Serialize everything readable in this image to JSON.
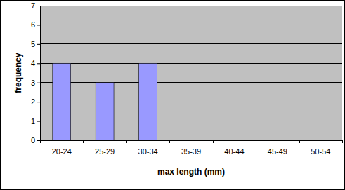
{
  "chart_data": {
    "type": "bar",
    "x_label": "max length (mm)",
    "y_label": "frequency",
    "categories": [
      "20-24",
      "25-29",
      "30-34",
      "35-39",
      "40-44",
      "45-49",
      "50-54"
    ],
    "values": [
      4,
      3,
      4,
      0,
      0,
      0,
      0
    ],
    "color": "#9999ff",
    "ylim": [
      0,
      7
    ],
    "yticks": [
      0,
      1,
      2,
      3,
      4,
      5,
      6,
      7
    ],
    "grid": true
  }
}
